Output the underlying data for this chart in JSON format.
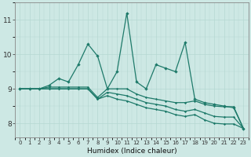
{
  "title": "",
  "xlabel": "Humidex (Indice chaleur)",
  "x": [
    0,
    1,
    2,
    3,
    4,
    5,
    6,
    7,
    8,
    9,
    10,
    11,
    12,
    13,
    14,
    15,
    16,
    17,
    18,
    19,
    20,
    21,
    22,
    23
  ],
  "line1": [
    9.0,
    9.0,
    9.0,
    9.1,
    9.3,
    9.2,
    9.7,
    10.3,
    9.95,
    9.0,
    9.5,
    11.2,
    9.2,
    9.0,
    9.7,
    9.6,
    9.5,
    10.35,
    8.7,
    8.6,
    8.55,
    8.5,
    8.45,
    7.85
  ],
  "line2": [
    9.0,
    9.0,
    9.0,
    9.05,
    9.05,
    9.05,
    9.05,
    9.05,
    8.75,
    9.0,
    9.0,
    9.0,
    8.85,
    8.75,
    8.7,
    8.65,
    8.6,
    8.6,
    8.65,
    8.55,
    8.5,
    8.48,
    8.48,
    7.85
  ],
  "line3": [
    9.0,
    9.0,
    9.0,
    9.0,
    9.0,
    9.0,
    9.0,
    9.0,
    8.7,
    8.9,
    8.85,
    8.8,
    8.7,
    8.6,
    8.55,
    8.5,
    8.4,
    8.35,
    8.4,
    8.3,
    8.2,
    8.18,
    8.18,
    7.85
  ],
  "line4": [
    9.0,
    9.0,
    9.0,
    9.0,
    9.0,
    9.0,
    9.0,
    9.0,
    8.7,
    8.8,
    8.7,
    8.65,
    8.55,
    8.45,
    8.4,
    8.35,
    8.25,
    8.2,
    8.25,
    8.1,
    8.0,
    7.98,
    7.98,
    7.85
  ],
  "bg_color": "#cde8e4",
  "line_color": "#1e7a6a",
  "grid_major_color": "#b5d8d2",
  "grid_minor_color": "#cde8e4",
  "ylim": [
    7.6,
    11.5
  ],
  "yticks": [
    8,
    9,
    10,
    11
  ],
  "xticks": [
    0,
    1,
    2,
    3,
    4,
    5,
    6,
    7,
    8,
    9,
    10,
    11,
    12,
    13,
    14,
    15,
    16,
    17,
    18,
    19,
    20,
    21,
    22,
    23
  ]
}
